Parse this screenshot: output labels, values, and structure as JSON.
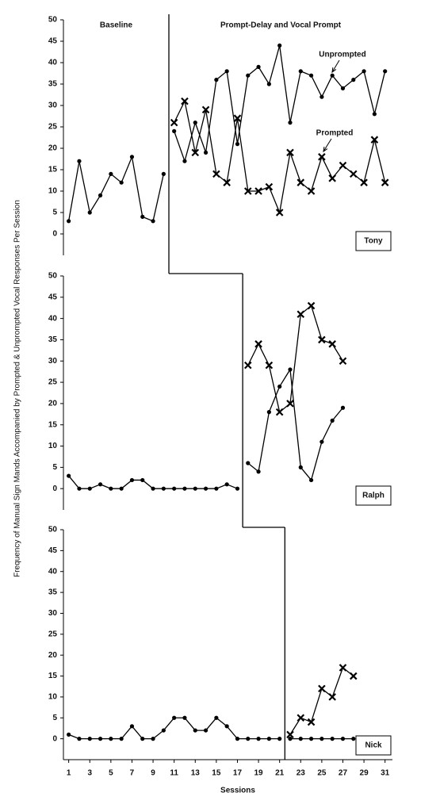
{
  "chart_data": [
    {
      "type": "line",
      "ylabel": "Frequency of Manual Sign Mands Accompanied by Prompted & Unprompted Vocal Responses Per Session",
      "phase_labels": [
        "Baseline",
        "Prompt-Delay and Vocal Prompt"
      ],
      "panel_label": "Tony",
      "phase_change": 10.5,
      "xlim": [
        0.5,
        31.7
      ],
      "ylim": [
        -5,
        50
      ],
      "yticks": [
        0,
        5,
        10,
        15,
        20,
        25,
        30,
        35,
        40,
        45,
        50
      ],
      "x": [
        1,
        2,
        3,
        4,
        5,
        6,
        7,
        8,
        9,
        10,
        11,
        12,
        13,
        14,
        15,
        16,
        17,
        18,
        19,
        20,
        21,
        22,
        23,
        24,
        25,
        26,
        27,
        28,
        29,
        30,
        31
      ],
      "series": [
        {
          "marker": "dot",
          "color": "#000000",
          "values": [
            3,
            17,
            5,
            9,
            14,
            12,
            18,
            4,
            3,
            14,
            null,
            null,
            null,
            null,
            null,
            null,
            null,
            null,
            null,
            null,
            null,
            null,
            null,
            null,
            null,
            null,
            null,
            null,
            null,
            null,
            null
          ]
        },
        {
          "marker": "dot",
          "color": "#000000",
          "values": [
            null,
            null,
            null,
            null,
            null,
            null,
            null,
            null,
            null,
            null,
            24,
            17,
            26,
            19,
            36,
            38,
            21,
            37,
            39,
            35,
            44,
            26,
            38,
            37,
            32,
            37,
            34,
            36,
            38,
            28,
            38
          ]
        },
        {
          "marker": "x",
          "color": "#000000",
          "values": [
            null,
            null,
            null,
            null,
            null,
            null,
            null,
            null,
            null,
            null,
            26,
            31,
            19,
            29,
            14,
            12,
            27,
            10,
            10,
            11,
            5,
            19,
            12,
            10,
            18,
            13,
            16,
            14,
            12,
            22,
            12
          ]
        }
      ],
      "annotations": [
        {
          "text": "Unprompted"
        },
        {
          "text": "Prompted"
        }
      ]
    },
    {
      "type": "line",
      "panel_label": "Ralph",
      "phase_change": 17.5,
      "xlim": [
        0.5,
        31.7
      ],
      "ylim": [
        -5,
        50
      ],
      "yticks": [
        0,
        5,
        10,
        15,
        20,
        25,
        30,
        35,
        40,
        45,
        50
      ],
      "x": [
        1,
        2,
        3,
        4,
        5,
        6,
        7,
        8,
        9,
        10,
        11,
        12,
        13,
        14,
        15,
        16,
        17,
        18,
        19,
        20,
        21,
        22,
        23,
        24,
        25,
        26,
        27
      ],
      "series": [
        {
          "marker": "dot",
          "color": "#000000",
          "values": [
            3,
            0,
            0,
            1,
            0,
            0,
            2,
            2,
            0,
            0,
            0,
            0,
            0,
            0,
            0,
            1,
            0,
            null,
            null,
            null,
            null,
            null,
            null,
            null,
            null,
            null,
            null
          ]
        },
        {
          "marker": "dot",
          "color": "#000000",
          "values": [
            null,
            null,
            null,
            null,
            null,
            null,
            null,
            null,
            null,
            null,
            null,
            null,
            null,
            null,
            null,
            null,
            null,
            6,
            4,
            18,
            24,
            28,
            5,
            2,
            11,
            16,
            19
          ]
        },
        {
          "marker": "x",
          "color": "#000000",
          "values": [
            null,
            null,
            null,
            null,
            null,
            null,
            null,
            null,
            null,
            null,
            null,
            null,
            null,
            null,
            null,
            null,
            null,
            29,
            34,
            29,
            18,
            20,
            41,
            43,
            35,
            34,
            30
          ]
        }
      ]
    },
    {
      "type": "line",
      "panel_label": "Nick",
      "xlabel": "Sessions",
      "phase_change": 21.5,
      "xlim": [
        0.5,
        31.7
      ],
      "ylim": [
        -5,
        50
      ],
      "yticks": [
        0,
        5,
        10,
        15,
        20,
        25,
        30,
        35,
        40,
        45,
        50
      ],
      "xticks": [
        1,
        3,
        5,
        7,
        9,
        11,
        13,
        15,
        17,
        19,
        21,
        23,
        25,
        27,
        29,
        31
      ],
      "x": [
        1,
        2,
        3,
        4,
        5,
        6,
        7,
        8,
        9,
        10,
        11,
        12,
        13,
        14,
        15,
        16,
        17,
        18,
        19,
        20,
        21,
        22,
        23,
        24,
        25,
        26,
        27,
        28
      ],
      "series": [
        {
          "marker": "dot",
          "color": "#000000",
          "values": [
            1,
            0,
            0,
            0,
            0,
            0,
            3,
            0,
            0,
            2,
            5,
            5,
            2,
            2,
            5,
            3,
            0,
            0,
            0,
            0,
            0,
            null,
            null,
            null,
            null,
            null,
            null,
            null
          ]
        },
        {
          "marker": "dot",
          "color": "#000000",
          "values": [
            null,
            null,
            null,
            null,
            null,
            null,
            null,
            null,
            null,
            null,
            null,
            null,
            null,
            null,
            null,
            null,
            null,
            null,
            null,
            null,
            null,
            0,
            0,
            0,
            0,
            0,
            0,
            0
          ]
        },
        {
          "marker": "x",
          "color": "#000000",
          "values": [
            null,
            null,
            null,
            null,
            null,
            null,
            null,
            null,
            null,
            null,
            null,
            null,
            null,
            null,
            null,
            null,
            null,
            null,
            null,
            null,
            null,
            1,
            5,
            4,
            12,
            10,
            17,
            15
          ]
        }
      ]
    }
  ]
}
